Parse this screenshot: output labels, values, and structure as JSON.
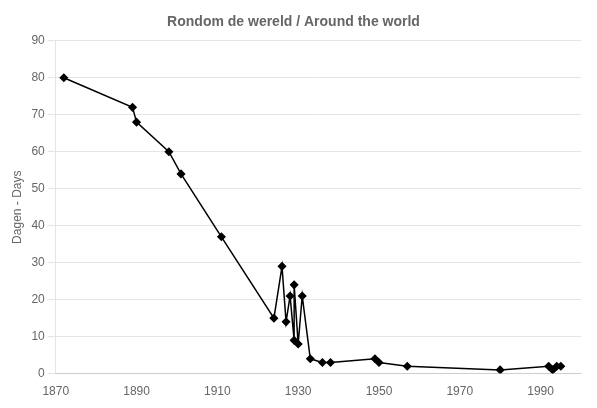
{
  "chart_data": {
    "type": "line",
    "title": "Rondom de wereld / Around the world",
    "ylabel": "Dagen - Days",
    "x": [
      1872,
      1889,
      1890,
      1898,
      1901,
      1911,
      1924,
      1926,
      1927,
      1928,
      1929,
      1929,
      1930,
      1931,
      1933,
      1936,
      1938,
      1949,
      1950,
      1957,
      1980,
      1992,
      1993,
      1994,
      1995
    ],
    "values": [
      80,
      72,
      68,
      60,
      54,
      37,
      15,
      29,
      14,
      21,
      9,
      24,
      8,
      21,
      4,
      3,
      3,
      4,
      3,
      2,
      1,
      2,
      1,
      2,
      2
    ],
    "color": "#000000",
    "marker": "diamond",
    "xlim": [
      1870,
      2000
    ],
    "ylim": [
      0,
      90
    ],
    "xticks": [
      1870,
      1890,
      1910,
      1930,
      1950,
      1970,
      1990
    ],
    "yticks": [
      0,
      10,
      20,
      30,
      40,
      50,
      60,
      70,
      80,
      90
    ],
    "grid": "y"
  }
}
